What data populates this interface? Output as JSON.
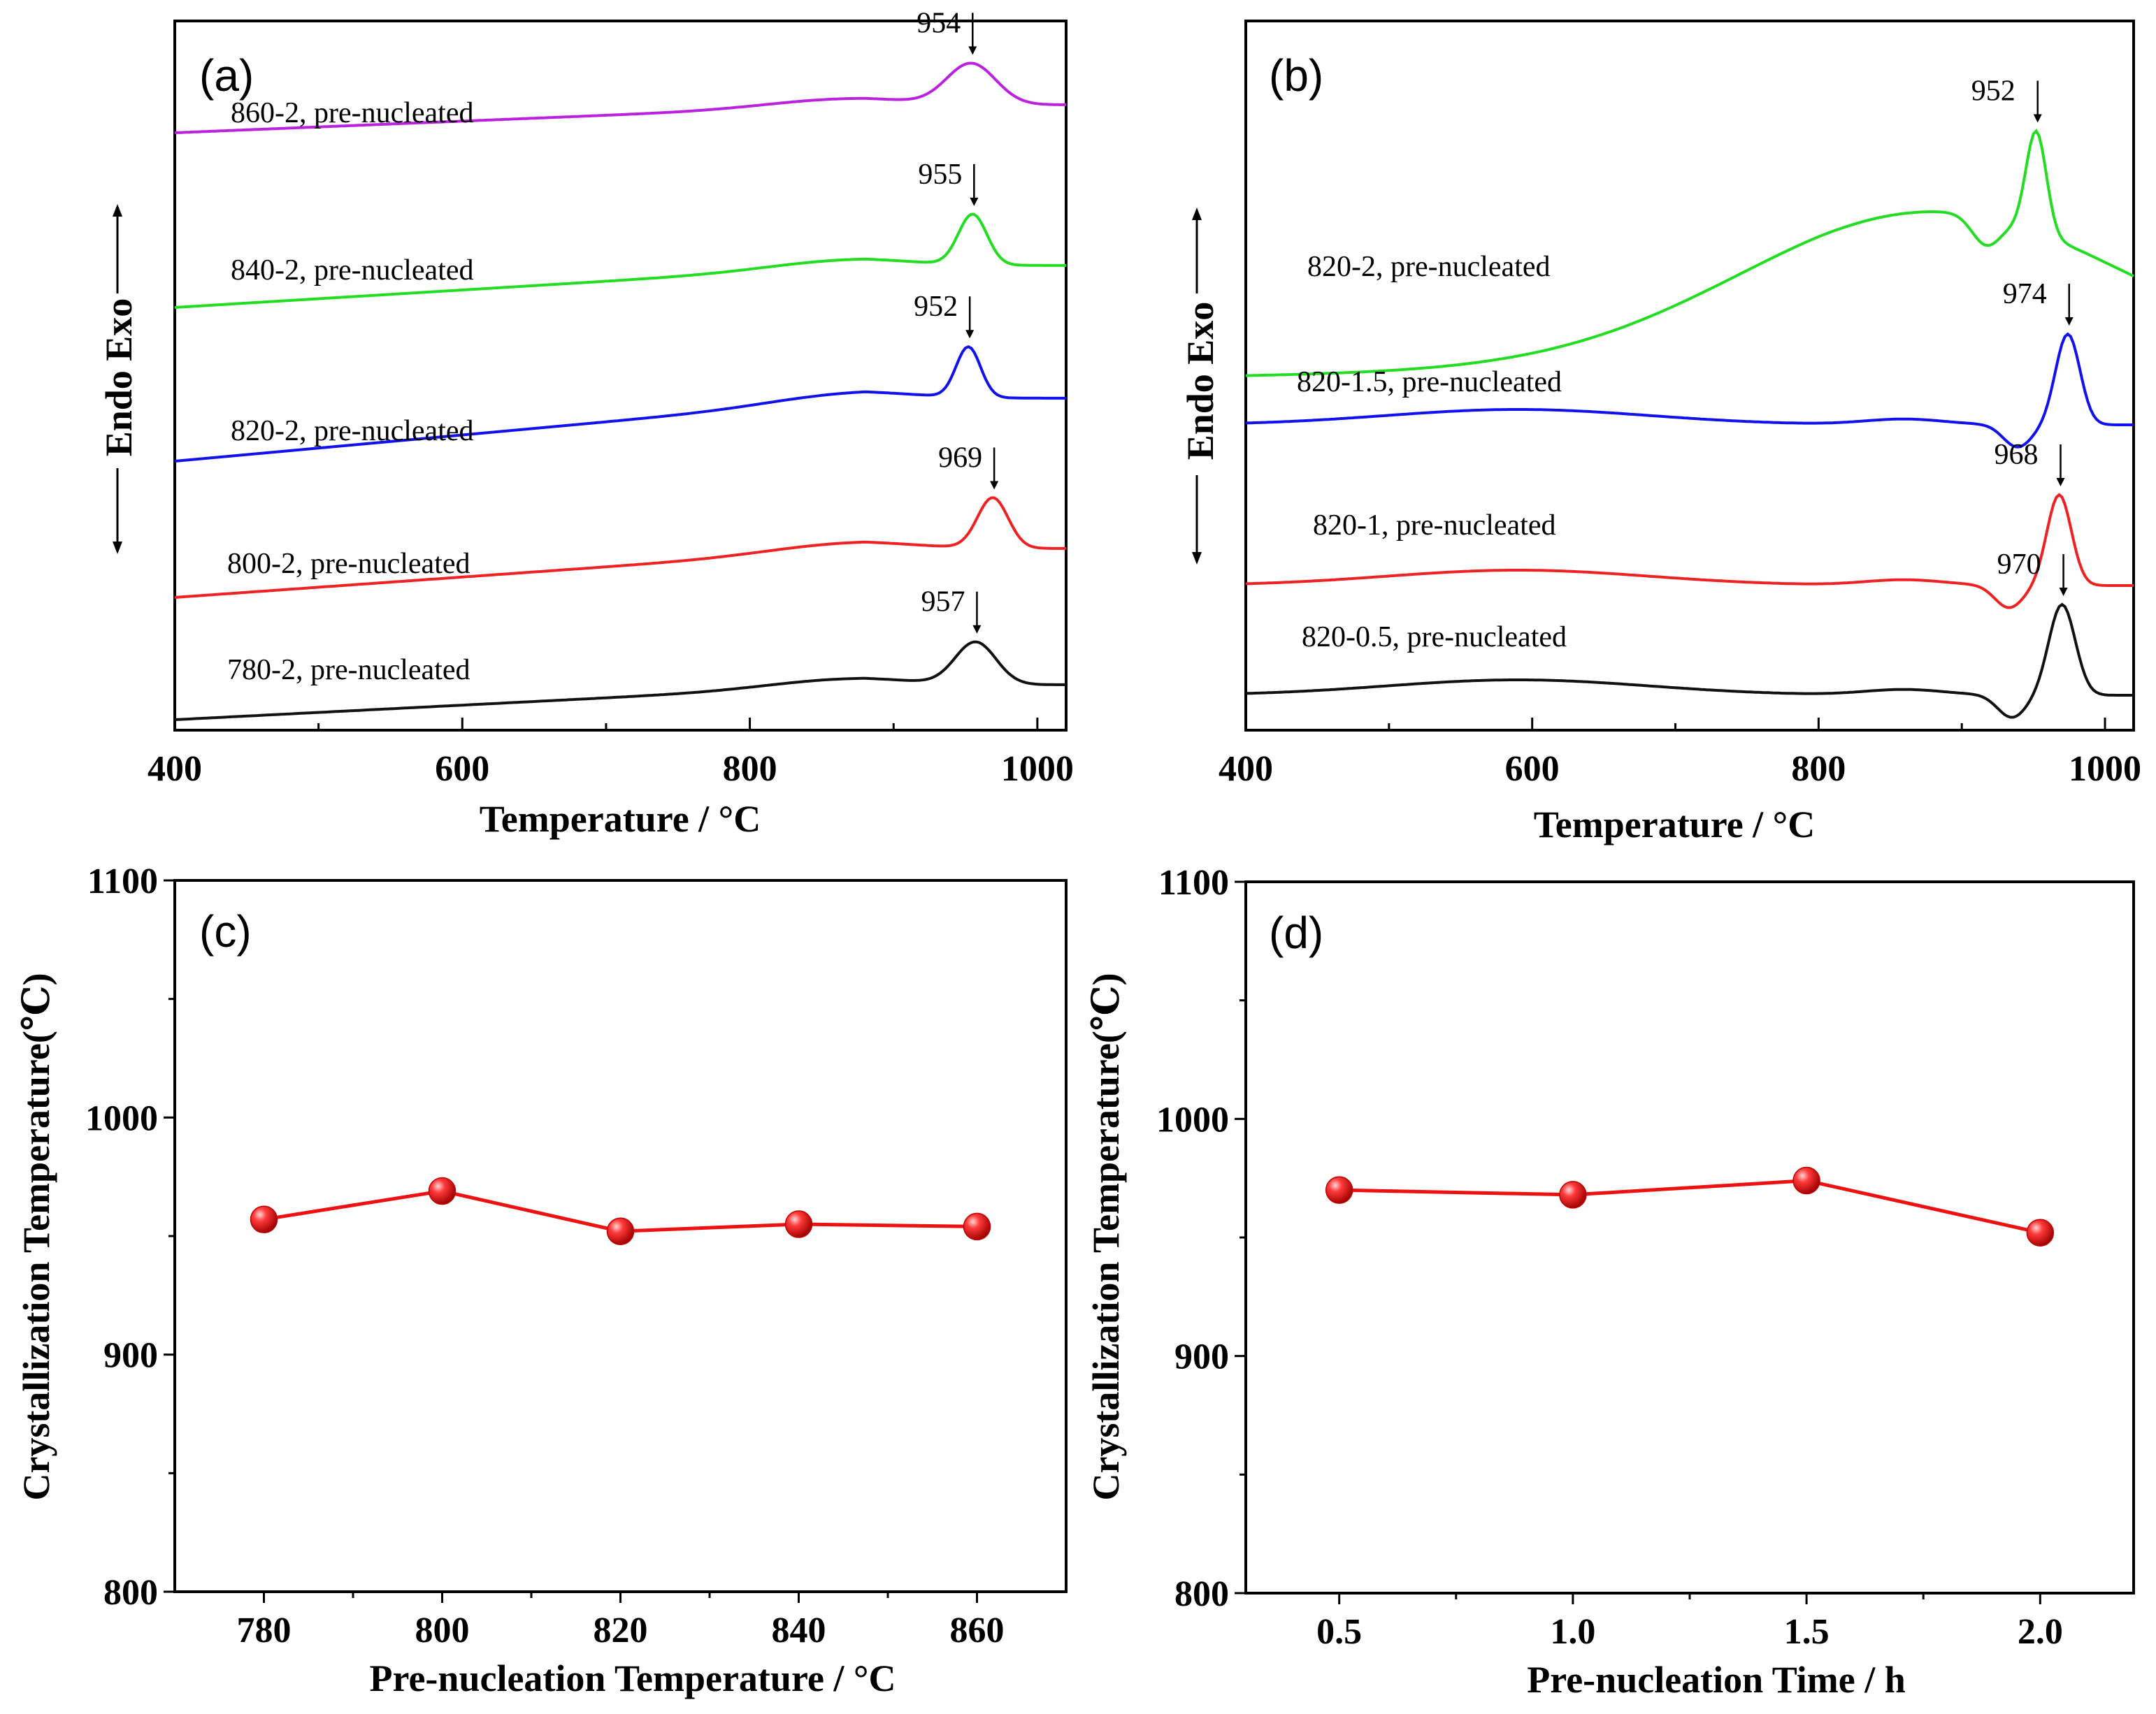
{
  "chart_data": [
    {
      "id": "a",
      "type": "line",
      "panel_label": "(a)",
      "xlabel": "Temperature / °C",
      "ylabel": "Endo Exo",
      "xlim": [
        400,
        1020
      ],
      "xticks": [
        400,
        600,
        800,
        1000
      ],
      "series": [
        {
          "name": "860-2, pre-nucleated",
          "color": "#bb22dd",
          "peak": 954,
          "peak_label": "954",
          "amp": 58,
          "width": 24,
          "dip": 0
        },
        {
          "name": "840-2, pre-nucleated",
          "color": "#22dd22",
          "peak": 955,
          "peak_label": "955",
          "amp": 72,
          "width": 14,
          "dip": 0
        },
        {
          "name": "820-2, pre-nucleated",
          "color": "#1111ee",
          "peak": 952,
          "peak_label": "952",
          "amp": 72,
          "width": 12,
          "dip": 0
        },
        {
          "name": "800-2, pre-nucleated",
          "color": "#ee2222",
          "peak": 969,
          "peak_label": "969",
          "amp": 72,
          "width": 15,
          "dip": 0
        },
        {
          "name": "780-2, pre-nucleated",
          "color": "#111111",
          "peak": 957,
          "peak_label": "957",
          "amp": 60,
          "width": 20,
          "dip": 0
        }
      ]
    },
    {
      "id": "b",
      "type": "line",
      "panel_label": "(b)",
      "xlabel": "Temperature / °C",
      "ylabel": "Endo Exo",
      "xlim": [
        400,
        1020
      ],
      "xticks": [
        400,
        600,
        800,
        1000
      ],
      "series": [
        {
          "name": "820-2, pre-nucleated",
          "color": "#22dd22",
          "peak": 952,
          "peak_label": "952",
          "amp": 145,
          "width": 10,
          "dip": 10
        },
        {
          "name": "820-1.5, pre-nucleated",
          "color": "#1111ee",
          "peak": 974,
          "peak_label": "974",
          "amp": 130,
          "width": 12,
          "dip": 8
        },
        {
          "name": "820-1, pre-nucleated",
          "color": "#ee2222",
          "peak": 968,
          "peak_label": "968",
          "amp": 130,
          "width": 12,
          "dip": 8
        },
        {
          "name": "820-0.5, pre-nucleated",
          "color": "#111111",
          "peak": 970,
          "peak_label": "970",
          "amp": 130,
          "width": 13,
          "dip": 8
        }
      ]
    },
    {
      "id": "c",
      "type": "scatter",
      "panel_label": "(c)",
      "xlabel": "Pre-nucleation Temperature / °C",
      "ylabel": "Crystallization Temperature(℃)",
      "xlim": [
        770,
        870
      ],
      "ylim": [
        800,
        1100
      ],
      "xticks": [
        "780",
        "800",
        "820",
        "840",
        "860"
      ],
      "yticks": [
        "800",
        "900",
        "1000",
        "1100"
      ],
      "x": [
        780,
        800,
        820,
        840,
        860
      ],
      "y": [
        957,
        969,
        952,
        955,
        954
      ],
      "color": "#ee1111"
    },
    {
      "id": "d",
      "type": "scatter",
      "panel_label": "(d)",
      "xlabel": "Pre-nucleation Time / h",
      "ylabel": "Crystallization Temperature(℃)",
      "xlim": [
        0.3,
        2.2
      ],
      "ylim": [
        800,
        1100
      ],
      "xticks": [
        "0.5",
        "1.0",
        "1.5",
        "2.0"
      ],
      "yticks": [
        "800",
        "900",
        "1000",
        "1100"
      ],
      "x": [
        0.5,
        1.0,
        1.5,
        2.0
      ],
      "y": [
        970,
        968,
        974,
        952
      ],
      "color": "#ee1111"
    }
  ]
}
